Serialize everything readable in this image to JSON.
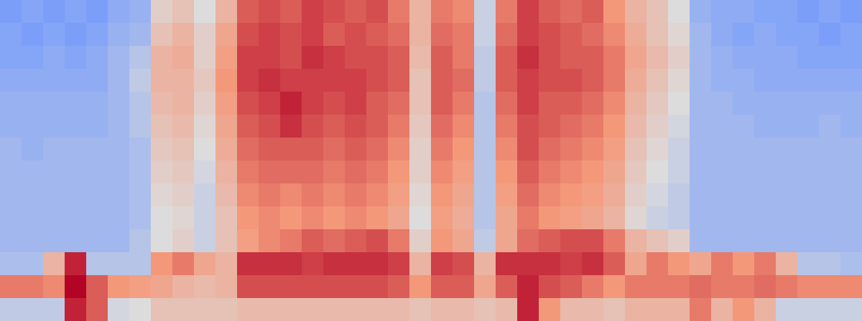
{
  "chart_data": {
    "type": "heatmap",
    "tick_labels": false,
    "zlim": [
      -1,
      1
    ],
    "cells": [
      [
        -0.5,
        -0.45,
        -0.5,
        -0.45,
        -0.5,
        -0.4,
        -0.35,
        0.1,
        0.2,
        0.0,
        0.3,
        0.7,
        0.75,
        0.7,
        0.8,
        0.75,
        0.7,
        0.75,
        0.6,
        0.3,
        0.6,
        0.55,
        -0.1,
        0.6,
        0.8,
        0.7,
        0.65,
        0.7,
        0.5,
        0.3,
        0.2,
        0.0,
        -0.35,
        -0.4,
        -0.4,
        -0.45,
        -0.45,
        -0.5,
        -0.45,
        -0.5
      ],
      [
        -0.45,
        -0.5,
        -0.45,
        -0.5,
        -0.45,
        -0.35,
        -0.3,
        0.2,
        0.3,
        0.1,
        0.4,
        0.75,
        0.8,
        0.75,
        0.8,
        0.7,
        0.75,
        0.7,
        0.65,
        0.3,
        0.65,
        0.6,
        -0.1,
        0.65,
        0.8,
        0.75,
        0.7,
        0.65,
        0.55,
        0.35,
        0.2,
        0.05,
        -0.3,
        -0.4,
        -0.45,
        -0.4,
        -0.45,
        -0.45,
        -0.5,
        -0.45
      ],
      [
        -0.45,
        -0.45,
        -0.4,
        -0.45,
        -0.4,
        -0.3,
        -0.2,
        0.3,
        0.35,
        0.1,
        0.45,
        0.8,
        0.8,
        0.75,
        0.85,
        0.8,
        0.75,
        0.75,
        0.7,
        0.25,
        0.7,
        0.6,
        -0.15,
        0.7,
        0.85,
        0.75,
        0.7,
        0.7,
        0.6,
        0.4,
        0.25,
        0.1,
        -0.3,
        -0.35,
        -0.4,
        -0.4,
        -0.4,
        -0.45,
        -0.45,
        -0.45
      ],
      [
        -0.4,
        -0.4,
        -0.4,
        -0.4,
        -0.4,
        -0.3,
        -0.15,
        0.3,
        0.3,
        0.15,
        0.5,
        0.8,
        0.85,
        0.8,
        0.8,
        0.8,
        0.8,
        0.75,
        0.7,
        0.2,
        0.7,
        0.65,
        -0.15,
        0.7,
        0.8,
        0.75,
        0.75,
        0.7,
        0.6,
        0.35,
        0.2,
        0.05,
        -0.3,
        -0.35,
        -0.35,
        -0.4,
        -0.4,
        -0.4,
        -0.4,
        -0.4
      ],
      [
        -0.35,
        -0.35,
        -0.35,
        -0.35,
        -0.35,
        -0.3,
        -0.2,
        0.25,
        0.3,
        0.1,
        0.45,
        0.75,
        0.8,
        0.9,
        0.8,
        0.75,
        0.8,
        0.7,
        0.65,
        0.2,
        0.7,
        0.6,
        -0.2,
        0.65,
        0.8,
        0.7,
        0.7,
        0.65,
        0.55,
        0.3,
        0.15,
        0.0,
        -0.3,
        -0.3,
        -0.35,
        -0.35,
        -0.35,
        -0.35,
        -0.35,
        -0.35
      ],
      [
        -0.35,
        -0.35,
        -0.35,
        -0.35,
        -0.35,
        -0.3,
        -0.2,
        0.2,
        0.25,
        0.05,
        0.4,
        0.7,
        0.75,
        0.85,
        0.75,
        0.7,
        0.75,
        0.7,
        0.6,
        0.15,
        0.65,
        0.55,
        -0.2,
        0.6,
        0.75,
        0.7,
        0.65,
        0.6,
        0.5,
        0.25,
        0.1,
        -0.05,
        -0.3,
        -0.3,
        -0.3,
        -0.35,
        -0.35,
        -0.35,
        -0.3,
        -0.35
      ],
      [
        -0.3,
        -0.35,
        -0.3,
        -0.3,
        -0.3,
        -0.3,
        -0.25,
        0.15,
        0.2,
        0.0,
        0.35,
        0.65,
        0.7,
        0.7,
        0.7,
        0.65,
        0.7,
        0.65,
        0.55,
        0.1,
        0.6,
        0.5,
        -0.2,
        0.55,
        0.75,
        0.65,
        0.6,
        0.55,
        0.45,
        0.2,
        0.05,
        -0.1,
        -0.3,
        -0.3,
        -0.3,
        -0.3,
        -0.3,
        -0.3,
        -0.3,
        -0.3
      ],
      [
        -0.3,
        -0.3,
        -0.3,
        -0.3,
        -0.3,
        -0.3,
        -0.25,
        0.1,
        0.15,
        -0.05,
        0.3,
        0.6,
        0.65,
        0.65,
        0.65,
        0.6,
        0.65,
        0.6,
        0.5,
        0.1,
        0.55,
        0.45,
        -0.2,
        0.5,
        0.7,
        0.6,
        0.55,
        0.5,
        0.4,
        0.15,
        0.0,
        -0.1,
        -0.3,
        -0.3,
        -0.3,
        -0.3,
        -0.3,
        -0.3,
        -0.3,
        -0.3
      ],
      [
        -0.3,
        -0.3,
        -0.3,
        -0.3,
        -0.3,
        -0.3,
        -0.25,
        0.05,
        0.1,
        -0.1,
        0.25,
        0.55,
        0.6,
        0.55,
        0.6,
        0.55,
        0.6,
        0.55,
        0.45,
        0.05,
        0.5,
        0.4,
        -0.2,
        0.45,
        0.65,
        0.55,
        0.5,
        0.45,
        0.35,
        0.1,
        -0.05,
        -0.15,
        -0.3,
        -0.3,
        -0.3,
        -0.3,
        -0.3,
        -0.3,
        -0.3,
        -0.3
      ],
      [
        -0.3,
        -0.3,
        -0.3,
        -0.3,
        -0.3,
        -0.3,
        -0.25,
        0.0,
        0.05,
        -0.1,
        0.2,
        0.5,
        0.55,
        0.5,
        0.55,
        0.5,
        0.55,
        0.5,
        0.4,
        0.0,
        0.45,
        0.35,
        -0.2,
        0.4,
        0.6,
        0.5,
        0.45,
        0.4,
        0.3,
        0.05,
        -0.1,
        -0.15,
        -0.3,
        -0.3,
        -0.3,
        -0.3,
        -0.3,
        -0.3,
        -0.3,
        -0.3
      ],
      [
        -0.3,
        -0.3,
        -0.3,
        -0.3,
        -0.3,
        -0.3,
        -0.2,
        0.0,
        0.1,
        -0.1,
        0.2,
        0.45,
        0.55,
        0.6,
        0.7,
        0.65,
        0.7,
        0.75,
        0.6,
        0.1,
        0.5,
        0.4,
        -0.15,
        0.4,
        0.65,
        0.7,
        0.75,
        0.75,
        0.6,
        0.3,
        0.2,
        0.1,
        -0.3,
        -0.3,
        -0.3,
        -0.3,
        -0.3,
        -0.3,
        -0.3,
        -0.3
      ],
      [
        -0.25,
        -0.25,
        0.3,
        0.9,
        -0.2,
        -0.2,
        -0.2,
        0.5,
        0.6,
        0.4,
        0.3,
        0.85,
        0.85,
        0.85,
        0.8,
        0.85,
        0.85,
        0.85,
        0.8,
        0.3,
        0.8,
        0.75,
        0.3,
        0.85,
        0.85,
        0.85,
        0.8,
        0.85,
        0.7,
        0.4,
        0.6,
        0.5,
        0.4,
        0.6,
        0.5,
        0.6,
        0.3,
        -0.2,
        -0.2,
        -0.25
      ],
      [
        0.6,
        0.6,
        0.55,
        1.0,
        0.7,
        0.5,
        0.45,
        0.4,
        0.3,
        0.25,
        0.3,
        0.75,
        0.75,
        0.75,
        0.75,
        0.75,
        0.75,
        0.75,
        0.7,
        0.5,
        0.7,
        0.7,
        0.4,
        0.7,
        0.9,
        0.75,
        0.7,
        0.6,
        0.5,
        0.6,
        0.6,
        0.6,
        0.65,
        0.6,
        0.6,
        0.65,
        0.6,
        0.55,
        0.55,
        0.55
      ],
      [
        -0.15,
        -0.15,
        -0.15,
        0.9,
        0.7,
        -0.05,
        0.0,
        0.2,
        0.2,
        0.2,
        0.2,
        0.25,
        0.25,
        0.25,
        0.25,
        0.25,
        0.25,
        0.25,
        0.25,
        0.2,
        0.25,
        0.25,
        0.2,
        0.25,
        0.9,
        0.5,
        0.25,
        0.25,
        0.2,
        0.3,
        0.3,
        0.3,
        0.6,
        0.3,
        0.5,
        0.3,
        -0.1,
        -0.1,
        -0.1,
        -0.1
      ]
    ]
  }
}
